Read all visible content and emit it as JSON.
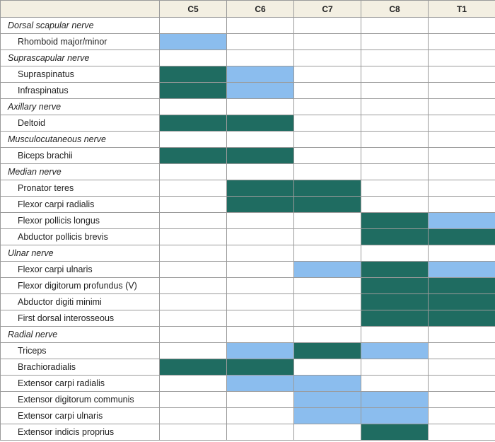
{
  "header": {
    "label": "",
    "segments": [
      "C5",
      "C6",
      "C7",
      "C8",
      "T1"
    ]
  },
  "colors": {
    "none": "#ffffff",
    "partial": "#8bbdee",
    "major": "#1f6c61",
    "header": "#f3efe2"
  },
  "rows": [
    {
      "type": "nerve",
      "name": "Dorsal scapular nerve",
      "cells": [
        0,
        0,
        0,
        0,
        0
      ]
    },
    {
      "type": "muscle",
      "name": "Rhomboid major/minor",
      "cells": [
        1,
        0,
        0,
        0,
        0
      ]
    },
    {
      "type": "nerve",
      "name": "Suprascapular nerve",
      "cells": [
        0,
        0,
        0,
        0,
        0
      ]
    },
    {
      "type": "muscle",
      "name": "Supraspinatus",
      "cells": [
        2,
        1,
        0,
        0,
        0
      ]
    },
    {
      "type": "muscle",
      "name": "Infraspinatus",
      "cells": [
        2,
        1,
        0,
        0,
        0
      ]
    },
    {
      "type": "nerve",
      "name": "Axillary nerve",
      "cells": [
        0,
        0,
        0,
        0,
        0
      ]
    },
    {
      "type": "muscle",
      "name": "Deltoid",
      "cells": [
        2,
        2,
        0,
        0,
        0
      ]
    },
    {
      "type": "nerve",
      "name": "Musculocutaneous nerve",
      "cells": [
        0,
        0,
        0,
        0,
        0
      ]
    },
    {
      "type": "muscle",
      "name": "Biceps brachii",
      "cells": [
        2,
        2,
        0,
        0,
        0
      ]
    },
    {
      "type": "nerve",
      "name": "Median nerve",
      "cells": [
        0,
        0,
        0,
        0,
        0
      ]
    },
    {
      "type": "muscle",
      "name": "Pronator teres",
      "cells": [
        0,
        2,
        2,
        0,
        0
      ]
    },
    {
      "type": "muscle",
      "name": "Flexor carpi radialis",
      "cells": [
        0,
        2,
        2,
        0,
        0
      ]
    },
    {
      "type": "muscle",
      "name": "Flexor pollicis longus",
      "cells": [
        0,
        0,
        0,
        2,
        1
      ]
    },
    {
      "type": "muscle",
      "name": "Abductor pollicis brevis",
      "cells": [
        0,
        0,
        0,
        2,
        2
      ]
    },
    {
      "type": "nerve",
      "name": "Ulnar nerve",
      "cells": [
        0,
        0,
        0,
        0,
        0
      ]
    },
    {
      "type": "muscle",
      "name": "Flexor carpi ulnaris",
      "cells": [
        0,
        0,
        1,
        2,
        1
      ]
    },
    {
      "type": "muscle",
      "name": "Flexor digitorum profundus (V)",
      "cells": [
        0,
        0,
        0,
        2,
        2
      ]
    },
    {
      "type": "muscle",
      "name": "Abductor digiti minimi",
      "cells": [
        0,
        0,
        0,
        2,
        2
      ]
    },
    {
      "type": "muscle",
      "name": "First dorsal interosseous",
      "cells": [
        0,
        0,
        0,
        2,
        2
      ]
    },
    {
      "type": "nerve",
      "name": "Radial nerve",
      "cells": [
        0,
        0,
        0,
        0,
        0
      ]
    },
    {
      "type": "muscle",
      "name": "Triceps",
      "cells": [
        0,
        1,
        2,
        1,
        0
      ]
    },
    {
      "type": "muscle",
      "name": "Brachioradialis",
      "cells": [
        2,
        2,
        0,
        0,
        0
      ]
    },
    {
      "type": "muscle",
      "name": "Extensor carpi radialis",
      "cells": [
        0,
        1,
        1,
        0,
        0
      ]
    },
    {
      "type": "muscle",
      "name": "Extensor digitorum communis",
      "cells": [
        0,
        0,
        1,
        1,
        0
      ]
    },
    {
      "type": "muscle",
      "name": "Extensor carpi ulnaris",
      "cells": [
        0,
        0,
        1,
        1,
        0
      ]
    },
    {
      "type": "muscle",
      "name": "Extensor indicis proprius",
      "cells": [
        0,
        0,
        0,
        2,
        0
      ]
    }
  ]
}
